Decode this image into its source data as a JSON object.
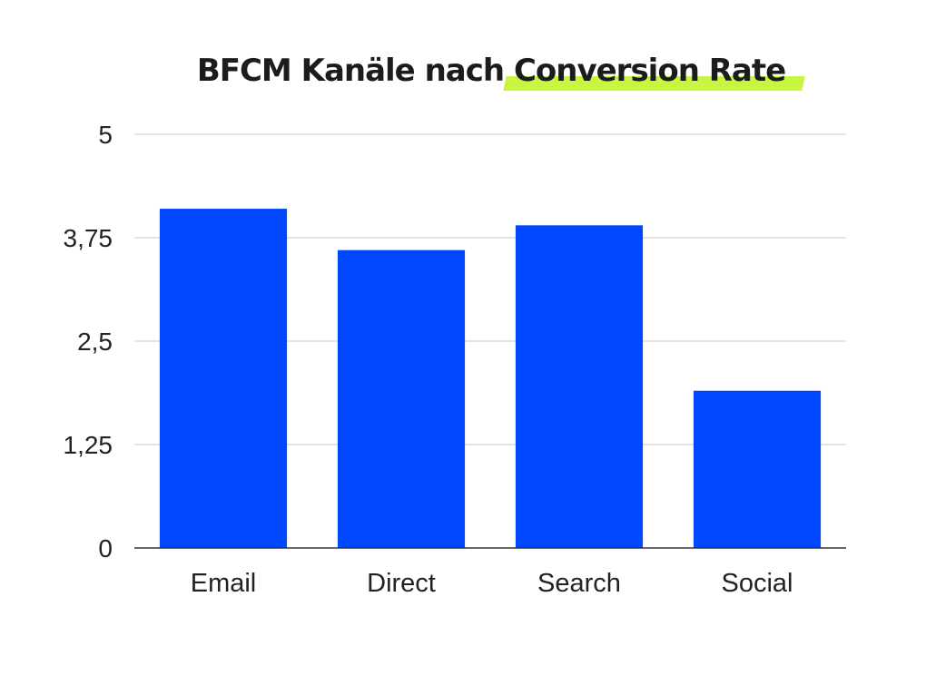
{
  "title_parts": {
    "plain": "BFCM Kanäle nach ",
    "highlight": "Conversion Rate"
  },
  "colors": {
    "bar": "#0047ff",
    "highlight": "#c8f542",
    "gridline": "#c8c8c8",
    "axis": "#333333",
    "text": "#222222"
  },
  "chart_data": {
    "type": "bar",
    "title": "BFCM Kanäle nach Conversion Rate",
    "categories": [
      "Email",
      "Direct",
      "Search",
      "Social"
    ],
    "values": [
      4.1,
      3.6,
      3.9,
      1.9
    ],
    "ylim": [
      0,
      5
    ],
    "yticks": [
      0,
      1.25,
      2.5,
      3.75,
      5
    ],
    "ytick_labels": [
      "0",
      "1,25",
      "2,5",
      "3,75",
      "5"
    ],
    "xlabel": "",
    "ylabel": "",
    "grid": true,
    "legend": false
  }
}
